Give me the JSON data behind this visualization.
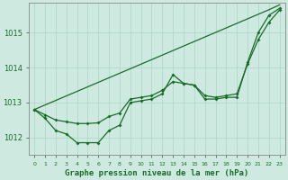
{
  "title": "Graphe pression niveau de la mer (hPa)",
  "background_color": "#ceeae0",
  "grid_color": "#aed4c8",
  "line_color": "#1a6b2a",
  "x_labels": [
    "0",
    "1",
    "2",
    "3",
    "4",
    "5",
    "6",
    "7",
    "8",
    "9",
    "10",
    "11",
    "12",
    "13",
    "14",
    "15",
    "16",
    "17",
    "18",
    "19",
    "20",
    "21",
    "22",
    "23"
  ],
  "ylim": [
    1011.5,
    1015.85
  ],
  "yticks": [
    1012,
    1013,
    1014,
    1015
  ],
  "series_linear": [
    1012.8,
    1012.93,
    1013.06,
    1013.19,
    1013.32,
    1013.45,
    1013.58,
    1013.71,
    1013.84,
    1013.97,
    1014.1,
    1014.23,
    1014.36,
    1014.49,
    1014.62,
    1014.75,
    1014.88,
    1015.01,
    1015.14,
    1015.27,
    1015.4,
    1015.53,
    1015.66,
    1015.8
  ],
  "series_jagged": [
    1012.8,
    1012.55,
    1012.2,
    1012.1,
    1011.85,
    1011.85,
    1011.85,
    1012.2,
    1012.35,
    1013.0,
    1013.05,
    1013.1,
    1013.25,
    1013.8,
    1013.55,
    1013.5,
    1013.1,
    1013.1,
    1013.15,
    1013.15,
    1014.15,
    1015.0,
    1015.5,
    1015.7
  ],
  "series_mid": [
    1012.8,
    1012.65,
    1012.5,
    1012.45,
    1012.4,
    1012.4,
    1012.42,
    1012.6,
    1012.7,
    1013.1,
    1013.15,
    1013.2,
    1013.35,
    1013.6,
    1013.55,
    1013.5,
    1013.2,
    1013.15,
    1013.2,
    1013.25,
    1014.1,
    1014.8,
    1015.3,
    1015.65
  ],
  "xlabel_fontsize": 6.5,
  "ytick_fontsize": 6,
  "xtick_fontsize": 4.5
}
